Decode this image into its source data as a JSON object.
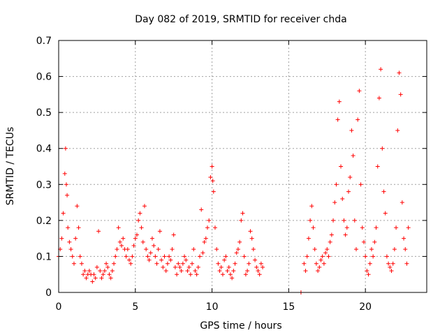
{
  "chart_data": {
    "type": "scatter",
    "title": "Day 082 of 2019, SRMTID for receiver chda",
    "xlabel": "GPS time / hours",
    "ylabel": "SRMTID / TECUs",
    "xlim": [
      0,
      24
    ],
    "ylim": [
      0,
      0.7
    ],
    "xticks": [
      0,
      5,
      10,
      15,
      20
    ],
    "xtick_labels": [
      "0",
      "5",
      "10",
      "15",
      "20"
    ],
    "yticks": [
      0,
      0.1,
      0.2,
      0.3,
      0.4,
      0.5,
      0.6,
      0.7
    ],
    "ytick_labels": [
      "0",
      "0.1",
      "0.2",
      "0.3",
      "0.4",
      "0.5",
      "0.6",
      "0.7"
    ],
    "grid": true,
    "marker": "+",
    "color": "#ff0000",
    "series": [
      {
        "name": "SRMTID",
        "x": [
          0.0,
          0.1,
          0.2,
          0.3,
          0.4,
          0.45,
          0.5,
          0.55,
          0.6,
          0.7,
          0.8,
          0.9,
          1.0,
          1.1,
          1.2,
          1.3,
          1.4,
          1.5,
          1.6,
          1.7,
          1.8,
          1.9,
          2.0,
          2.1,
          2.2,
          2.3,
          2.4,
          2.5,
          2.6,
          2.7,
          2.8,
          2.9,
          3.0,
          3.1,
          3.2,
          3.3,
          3.4,
          3.5,
          3.6,
          3.7,
          3.8,
          3.9,
          4.0,
          4.1,
          4.2,
          4.3,
          4.4,
          4.5,
          4.6,
          4.7,
          4.8,
          4.9,
          5.0,
          5.1,
          5.2,
          5.3,
          5.4,
          5.5,
          5.6,
          5.7,
          5.8,
          5.9,
          6.0,
          6.1,
          6.2,
          6.3,
          6.4,
          6.5,
          6.6,
          6.7,
          6.8,
          6.9,
          7.0,
          7.1,
          7.2,
          7.3,
          7.4,
          7.5,
          7.6,
          7.7,
          7.8,
          7.9,
          8.0,
          8.1,
          8.2,
          8.3,
          8.4,
          8.5,
          8.6,
          8.7,
          8.8,
          8.9,
          9.0,
          9.1,
          9.2,
          9.3,
          9.4,
          9.5,
          9.6,
          9.7,
          9.8,
          9.9,
          10.0,
          10.05,
          10.1,
          10.2,
          10.3,
          10.4,
          10.5,
          10.6,
          10.7,
          10.8,
          10.9,
          11.0,
          11.1,
          11.2,
          11.3,
          11.4,
          11.5,
          11.6,
          11.7,
          11.8,
          11.9,
          12.0,
          12.1,
          12.2,
          12.3,
          12.4,
          12.5,
          12.6,
          12.7,
          12.8,
          12.9,
          13.0,
          13.1,
          13.2,
          13.3,
          15.8,
          16.0,
          16.1,
          16.2,
          16.3,
          16.4,
          16.5,
          16.6,
          16.7,
          16.8,
          16.9,
          17.0,
          17.1,
          17.2,
          17.3,
          17.4,
          17.5,
          17.6,
          17.7,
          17.8,
          17.9,
          18.0,
          18.1,
          18.2,
          18.3,
          18.4,
          18.5,
          18.6,
          18.7,
          18.8,
          18.9,
          19.0,
          19.1,
          19.2,
          19.3,
          19.4,
          19.5,
          19.6,
          19.7,
          19.8,
          19.9,
          20.0,
          20.1,
          20.2,
          20.3,
          20.4,
          20.5,
          20.6,
          20.7,
          20.8,
          20.9,
          21.0,
          21.1,
          21.2,
          21.3,
          21.4,
          21.5,
          21.6,
          21.7,
          21.8,
          21.9,
          22.0,
          22.1,
          22.2,
          22.3,
          22.4,
          22.5,
          22.6,
          22.7,
          22.8
        ],
        "y": [
          0.1,
          0.12,
          0.15,
          0.22,
          0.33,
          0.4,
          0.3,
          0.27,
          0.18,
          0.14,
          0.12,
          0.1,
          0.08,
          0.15,
          0.24,
          0.18,
          0.1,
          0.08,
          0.05,
          0.06,
          0.04,
          0.05,
          0.06,
          0.05,
          0.03,
          0.05,
          0.04,
          0.07,
          0.17,
          0.06,
          0.04,
          0.05,
          0.06,
          0.08,
          0.07,
          0.05,
          0.04,
          0.06,
          0.08,
          0.1,
          0.12,
          0.18,
          0.14,
          0.13,
          0.15,
          0.12,
          0.1,
          0.12,
          0.09,
          0.08,
          0.1,
          0.13,
          0.15,
          0.16,
          0.2,
          0.22,
          0.18,
          0.14,
          0.24,
          0.12,
          0.1,
          0.09,
          0.11,
          0.15,
          0.13,
          0.1,
          0.08,
          0.12,
          0.17,
          0.09,
          0.07,
          0.1,
          0.06,
          0.08,
          0.1,
          0.09,
          0.12,
          0.16,
          0.07,
          0.05,
          0.08,
          0.07,
          0.06,
          0.08,
          0.1,
          0.09,
          0.06,
          0.07,
          0.05,
          0.08,
          0.12,
          0.06,
          0.05,
          0.07,
          0.1,
          0.23,
          0.11,
          0.14,
          0.15,
          0.18,
          0.2,
          0.32,
          0.35,
          0.31,
          0.28,
          0.18,
          0.12,
          0.08,
          0.06,
          0.07,
          0.05,
          0.09,
          0.1,
          0.06,
          0.07,
          0.05,
          0.04,
          0.06,
          0.08,
          0.11,
          0.12,
          0.14,
          0.2,
          0.22,
          0.1,
          0.05,
          0.06,
          0.08,
          0.17,
          0.15,
          0.12,
          0.09,
          0.07,
          0.06,
          0.05,
          0.08,
          0.07,
          0.0,
          0.08,
          0.06,
          0.1,
          0.15,
          0.2,
          0.24,
          0.18,
          0.12,
          0.08,
          0.06,
          0.07,
          0.09,
          0.1,
          0.08,
          0.11,
          0.12,
          0.1,
          0.14,
          0.16,
          0.2,
          0.25,
          0.3,
          0.48,
          0.53,
          0.35,
          0.26,
          0.2,
          0.16,
          0.18,
          0.28,
          0.32,
          0.45,
          0.38,
          0.2,
          0.12,
          0.48,
          0.56,
          0.3,
          0.18,
          0.14,
          0.1,
          0.06,
          0.05,
          0.08,
          0.12,
          0.1,
          0.14,
          0.18,
          0.35,
          0.54,
          0.62,
          0.4,
          0.28,
          0.22,
          0.1,
          0.08,
          0.07,
          0.06,
          0.08,
          0.12,
          0.18,
          0.45,
          0.61,
          0.55,
          0.25,
          0.15,
          0.12,
          0.08,
          0.18
        ]
      }
    ]
  }
}
